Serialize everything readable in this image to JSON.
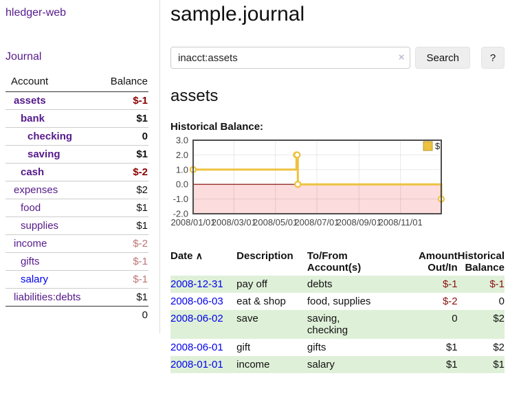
{
  "app": {
    "brand": "hledger-web",
    "nav_journal": "Journal"
  },
  "sidebar": {
    "header": {
      "account": "Account",
      "balance": "Balance"
    },
    "accounts": [
      {
        "name": "assets",
        "balance": "$-1",
        "level": 1,
        "bold": true,
        "negative": "strong"
      },
      {
        "name": "bank",
        "balance": "$1",
        "level": 2,
        "bold": true,
        "negative": "none"
      },
      {
        "name": "checking",
        "balance": "0",
        "level": 3,
        "bold": true,
        "negative": "none"
      },
      {
        "name": "saving",
        "balance": "$1",
        "level": 3,
        "bold": true,
        "negative": "none"
      },
      {
        "name": "cash",
        "balance": "$-2",
        "level": 2,
        "bold": true,
        "negative": "strong"
      },
      {
        "name": "expenses",
        "balance": "$2",
        "level": 1,
        "bold": false,
        "negative": "none"
      },
      {
        "name": "food",
        "balance": "$1",
        "level": 2,
        "bold": false,
        "negative": "none"
      },
      {
        "name": "supplies",
        "balance": "$1",
        "level": 2,
        "bold": false,
        "negative": "none"
      },
      {
        "name": "income",
        "balance": "$-2",
        "level": 1,
        "bold": false,
        "negative": "soft"
      },
      {
        "name": "gifts",
        "balance": "$-1",
        "level": 2,
        "bold": false,
        "negative": "soft"
      },
      {
        "name": "salary",
        "balance": "$-1",
        "level": 2,
        "bold": false,
        "negative": "soft",
        "link_style": "unvisited"
      },
      {
        "name": "liabilities:debts",
        "balance": "$1",
        "level": 1,
        "bold": false,
        "negative": "none"
      }
    ],
    "total": "0"
  },
  "header": {
    "title": "sample.journal"
  },
  "search": {
    "value": "inacct:assets",
    "placeholder": "",
    "clear_label": "×",
    "button_label": "Search",
    "help_label": "?"
  },
  "account_page": {
    "title": "assets",
    "chart_label": "Historical Balance:"
  },
  "chart_data": {
    "type": "line",
    "title": "Historical Balance:",
    "step": "after",
    "x_range": [
      "2008-01-01",
      "2008-12-31"
    ],
    "x_ticks": [
      "2008/01/01",
      "2008/03/01",
      "2008/05/01",
      "2008/07/01",
      "2008/09/01",
      "2008/11/01"
    ],
    "y_ticks": [
      3.0,
      2.0,
      1.0,
      0.0,
      -1.0,
      -2.0
    ],
    "ylim": [
      -2,
      3
    ],
    "grid": true,
    "legend": {
      "label": "$",
      "position": "top-right"
    },
    "series": [
      {
        "name": "$",
        "color": "#edc240",
        "points": [
          {
            "date": "2008-01-01",
            "value": 1
          },
          {
            "date": "2008-06-01",
            "value": 2
          },
          {
            "date": "2008-06-02",
            "value": 2
          },
          {
            "date": "2008-06-03",
            "value": 0
          },
          {
            "date": "2008-12-31",
            "value": -1
          }
        ]
      }
    ],
    "colors": {
      "line": "#edc240",
      "marker_fill": "#ffffff",
      "negative_region": "#fcdcdc",
      "zero_line": "#800000",
      "border": "#4d4d4d",
      "gridline": "rgba(0,0,0,0.09)",
      "tick_text": "#444444"
    }
  },
  "register": {
    "sort_icon": "∧",
    "columns": [
      {
        "label": "Date"
      },
      {
        "label": "Description"
      },
      {
        "label": "To/From Account(s)"
      },
      {
        "label": "Amount Out/In"
      },
      {
        "label": "Historical Balance"
      }
    ],
    "rows": [
      {
        "date": "2008-12-31",
        "description": "pay off",
        "accounts": "debts",
        "amount": "$-1",
        "amount_negative": true,
        "balance": "$-1",
        "balance_negative": true,
        "highlight": true
      },
      {
        "date": "2008-06-03",
        "description": "eat & shop",
        "accounts": "food, supplies",
        "amount": "$-2",
        "amount_negative": true,
        "balance": "0",
        "balance_negative": false,
        "highlight": false
      },
      {
        "date": "2008-06-02",
        "description": "save",
        "accounts": "saving, checking",
        "amount": "0",
        "amount_negative": false,
        "balance": "$2",
        "balance_negative": false,
        "highlight": true
      },
      {
        "date": "2008-06-01",
        "description": "gift",
        "accounts": "gifts",
        "amount": "$1",
        "amount_negative": false,
        "balance": "$2",
        "balance_negative": false,
        "highlight": false
      },
      {
        "date": "2008-01-01",
        "description": "income",
        "accounts": "salary",
        "amount": "$1",
        "amount_negative": false,
        "balance": "$1",
        "balance_negative": false,
        "highlight": true
      }
    ]
  }
}
